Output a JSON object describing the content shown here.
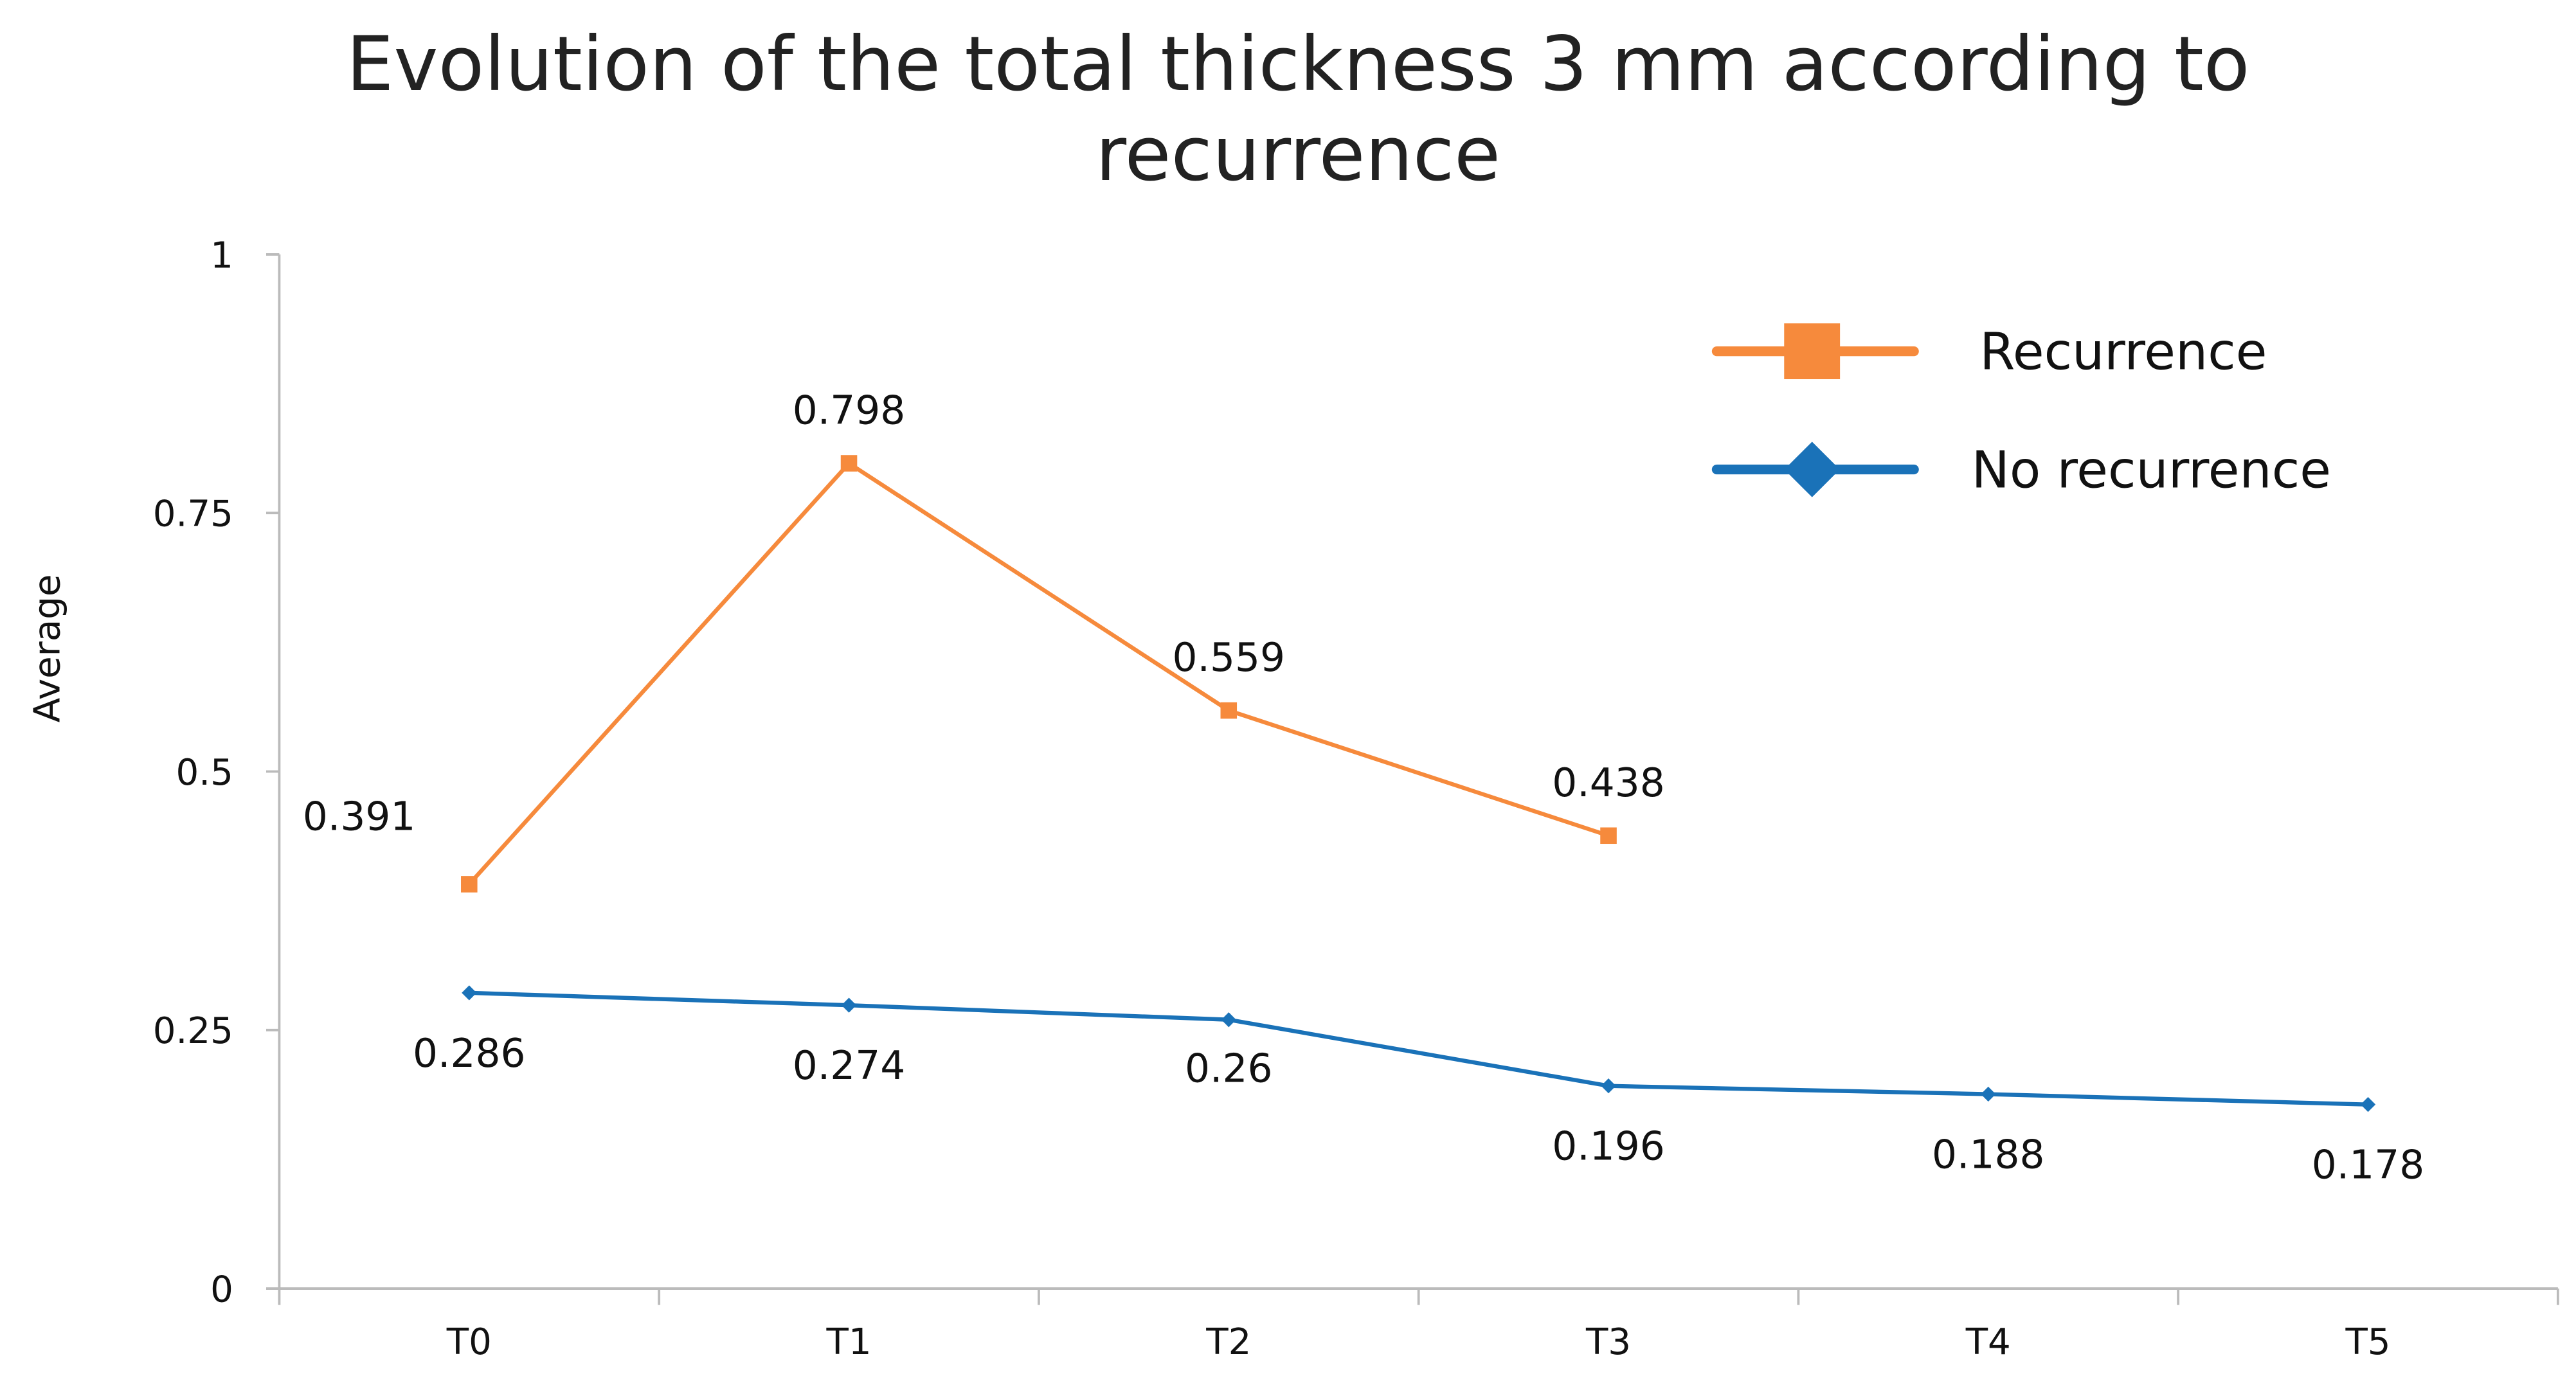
{
  "chart_data": {
    "type": "line",
    "title": "Evolution of the total thickness 3 mm according to recurrence",
    "y_label": "Average",
    "categories": [
      "T0",
      "T1",
      "T2",
      "T3",
      "T4",
      "T5"
    ],
    "series": [
      {
        "name": "Recurrence",
        "color": "#f68a3c",
        "marker": "square",
        "values": [
          0.391,
          0.798,
          0.559,
          0.438,
          null,
          null
        ]
      },
      {
        "name": "No recurrence",
        "color": "#1a72b8",
        "marker": "diamond",
        "values": [
          0.286,
          0.274,
          0.26,
          0.196,
          0.188,
          0.178
        ]
      }
    ],
    "ylim": [
      0,
      1
    ],
    "yticks": [
      0,
      0.25,
      0.5,
      0.75,
      1
    ],
    "grid": false,
    "legend": "top-right"
  }
}
